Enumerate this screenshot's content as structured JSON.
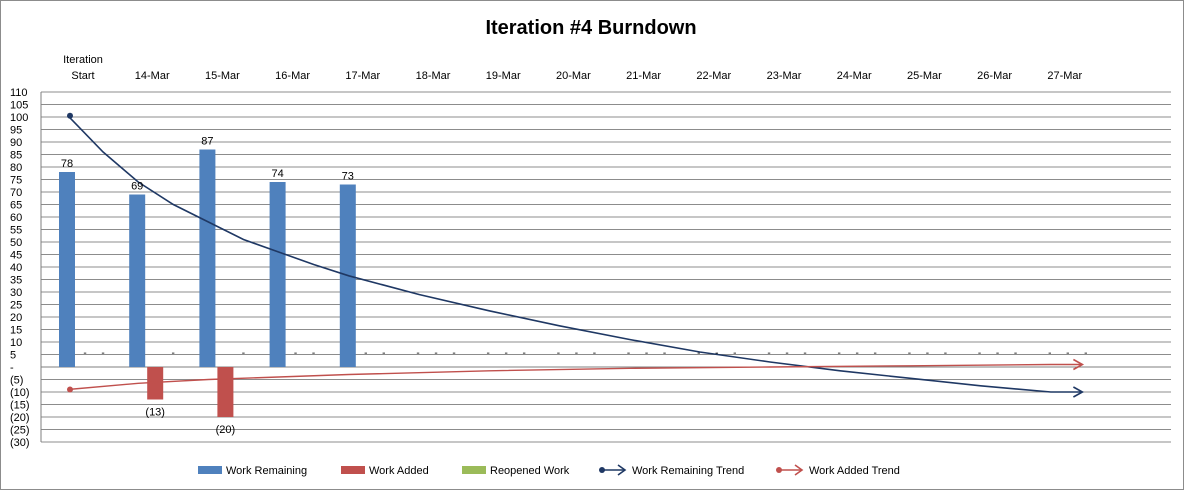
{
  "chart_data": {
    "type": "bar",
    "title": "Iteration #4 Burndown",
    "categories": [
      [
        "Iteration",
        "Start"
      ],
      [
        "14-Mar"
      ],
      [
        "15-Mar"
      ],
      [
        "16-Mar"
      ],
      [
        "17-Mar"
      ],
      [
        "18-Mar"
      ],
      [
        "19-Mar"
      ],
      [
        "20-Mar"
      ],
      [
        "21-Mar"
      ],
      [
        "22-Mar"
      ],
      [
        "23-Mar"
      ],
      [
        "24-Mar"
      ],
      [
        "25-Mar"
      ],
      [
        "26-Mar"
      ],
      [
        "27-Mar"
      ]
    ],
    "ylim": [
      -30,
      110
    ],
    "ystep": 5,
    "ytick_labels": [
      "(30)",
      "(25)",
      "(20)",
      "(15)",
      "(10)",
      "(5)",
      "-",
      "5",
      "10",
      "15",
      "20",
      "25",
      "30",
      "35",
      "40",
      "45",
      "50",
      "55",
      "60",
      "65",
      "70",
      "75",
      "80",
      "85",
      "90",
      "95",
      "100",
      "105",
      "110"
    ],
    "grid": true,
    "legend_position": "bottom",
    "series": [
      {
        "name": "Work Remaining",
        "color": "#4f81bd",
        "values": [
          78,
          69,
          87,
          74,
          73,
          null,
          null,
          null,
          null,
          null,
          null,
          null,
          null,
          null,
          null
        ],
        "labels": [
          "78",
          "69",
          "87",
          "74",
          "73",
          "",
          "",
          "",
          "",
          "",
          "",
          "",
          "",
          "",
          ""
        ]
      },
      {
        "name": "Work Added",
        "color": "#c0504d",
        "values": [
          0,
          -13,
          -20,
          0,
          0,
          0,
          0,
          0,
          0,
          0,
          0,
          0,
          0,
          0,
          0
        ],
        "labels": [
          "",
          "(13)",
          "(20)",
          "",
          "",
          "",
          "",
          "",
          "",
          "",
          "",
          "",
          "",
          "",
          ""
        ]
      },
      {
        "name": "Reopened Work",
        "color": "#9bbb59",
        "values": [
          0,
          0,
          0,
          0,
          0,
          0,
          0,
          0,
          0,
          0,
          0,
          0,
          0,
          0,
          0
        ],
        "labels": [
          "",
          "",
          "",
          "",
          "",
          "",
          "",
          "",
          "",
          "",
          "",
          "",
          "",
          "",
          ""
        ]
      }
    ],
    "zero_labels": {
      "text": "-",
      "rows": [
        [
          "",
          "-",
          "-"
        ],
        [
          "",
          "",
          "-"
        ],
        [
          "",
          "",
          "-"
        ],
        [
          "",
          "-",
          "-"
        ],
        [
          "",
          "-",
          "-"
        ],
        [
          "-",
          "-",
          "-"
        ],
        [
          "-",
          "-",
          "-"
        ],
        [
          "-",
          "-",
          "-"
        ],
        [
          "-",
          "-",
          "-"
        ],
        [
          "-",
          "-",
          "-"
        ],
        [
          "-",
          "-",
          "-"
        ],
        [
          "-",
          "-",
          "-"
        ],
        [
          "-",
          "-",
          "-"
        ],
        [
          "-",
          "-",
          "-"
        ],
        [
          "-",
          "-",
          "-"
        ]
      ]
    },
    "trends": [
      {
        "name": "Work Remaining Trend",
        "color": "#1f3864",
        "points": [
          [
            0,
            100.5
          ],
          [
            0.5,
            86
          ],
          [
            1,
            74
          ],
          [
            1.5,
            65
          ],
          [
            2,
            58
          ],
          [
            2.5,
            51
          ],
          [
            3,
            46
          ],
          [
            3.5,
            41
          ],
          [
            4,
            36.5
          ],
          [
            5,
            29
          ],
          [
            6,
            22.5
          ],
          [
            7,
            16.5
          ],
          [
            8,
            11
          ],
          [
            9,
            6
          ],
          [
            10,
            2
          ],
          [
            11,
            -1.5
          ],
          [
            12,
            -4.5
          ],
          [
            13,
            -7.5
          ],
          [
            14,
            -10
          ]
        ],
        "arrow_end": [
          14.45,
          -10
        ]
      },
      {
        "name": "Work Added Trend",
        "color": "#c0504d",
        "points": [
          [
            0,
            -9
          ],
          [
            1,
            -6.5
          ],
          [
            2,
            -5
          ],
          [
            3,
            -4
          ],
          [
            4,
            -3
          ],
          [
            6,
            -1.5
          ],
          [
            8,
            -0.5
          ],
          [
            10,
            0
          ],
          [
            12,
            0.5
          ],
          [
            14,
            1
          ]
        ],
        "arrow_end": [
          14.45,
          1
        ]
      }
    ]
  }
}
